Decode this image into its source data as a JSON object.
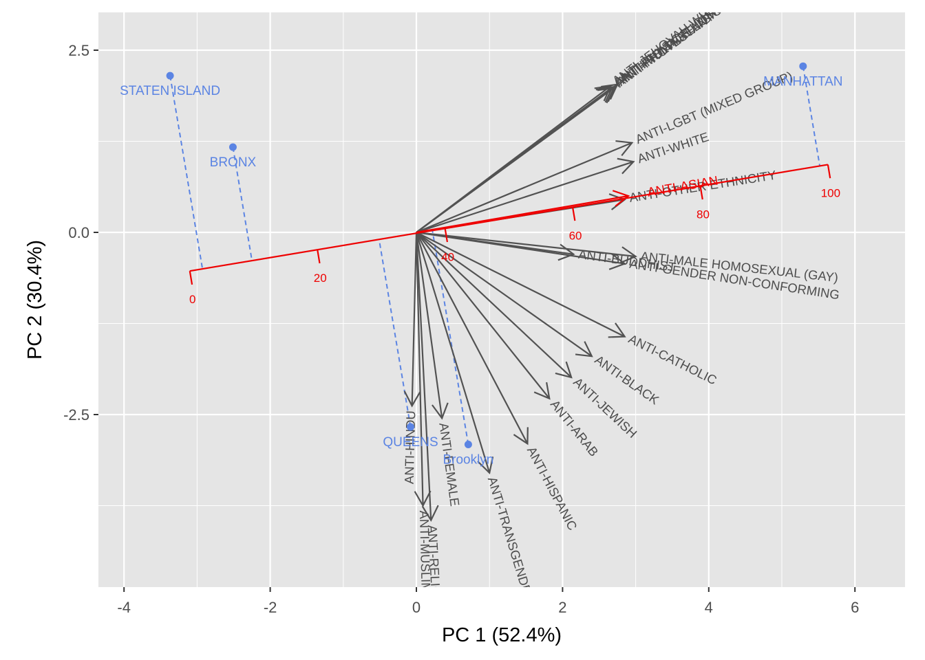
{
  "chart_data": {
    "type": "scatter",
    "subtype": "biplot",
    "xlabel": "PC 1 (52.4%)",
    "ylabel": "PC 2 (30.4%)",
    "xlim": [
      -4.35,
      6.7
    ],
    "ylim": [
      -4.85,
      3.0
    ],
    "x_ticks": [
      -4,
      -2,
      0,
      2,
      4,
      6
    ],
    "x_tick_labels": [
      "-4",
      "-2",
      "0",
      "2",
      "4",
      "6"
    ],
    "y_ticks": [
      2.5,
      0.0,
      -2.5
    ],
    "y_tick_labels": [
      "2.5",
      "0.0",
      "-2.5"
    ],
    "grid": true,
    "colors": {
      "panel": "#e5e5e5",
      "grid": "#ffffff",
      "points": "#5b84e3",
      "arrows": "#525252",
      "calibration": "#ee0000"
    },
    "observations": [
      {
        "label": "STATEN ISLAND",
        "x": -3.37,
        "y": 2.15
      },
      {
        "label": "BRONX",
        "x": -2.51,
        "y": 1.17
      },
      {
        "label": "MANHATTAN",
        "x": 5.29,
        "y": 2.28
      },
      {
        "label": "QUEENS",
        "x": -0.08,
        "y": -2.67
      },
      {
        "label": "Brooklyn",
        "x": 0.71,
        "y": -2.91
      }
    ],
    "variables": [
      {
        "label": "ANTI-LGBT (MIXED GROUP)",
        "x": 2.95,
        "y": 1.23
      },
      {
        "label": "ANTI-WHITE",
        "x": 2.97,
        "y": 0.97
      },
      {
        "label": "ANTI-OTHER ETHNICITY",
        "x": 2.85,
        "y": 0.45
      },
      {
        "label": "ANTI-MALE HOMOSEXUAL (GAY)",
        "x": 3.0,
        "y": -0.33
      },
      {
        "label": "ANTI-BUDDHIST",
        "x": 2.15,
        "y": -0.3
      },
      {
        "label": "ANTI-GENDER NON-CONFORMING",
        "x": 2.85,
        "y": -0.43
      },
      {
        "label": "ANTI-CATHOLIC",
        "x": 2.85,
        "y": -1.43
      },
      {
        "label": "ANTI-BLACK",
        "x": 2.4,
        "y": -1.7
      },
      {
        "label": "ANTI-JEWISH",
        "x": 2.12,
        "y": -1.99
      },
      {
        "label": "ANTI-ARAB",
        "x": 1.82,
        "y": -2.28
      },
      {
        "label": "ANTI-HISPANIC",
        "x": 1.52,
        "y": -2.9
      },
      {
        "label": "ANTI-TRANSGENDER",
        "x": 1.0,
        "y": -3.3
      },
      {
        "label": "ANTI-FEMALE",
        "x": 0.35,
        "y": -2.55
      },
      {
        "label": "ANTI-HINDU",
        "x": -0.06,
        "y": -2.38
      },
      {
        "label": "ANTI-RELIGIOUS",
        "x": 0.2,
        "y": -3.95
      },
      {
        "label": "ANTI-MUSLIM",
        "x": 0.09,
        "y": -3.75
      },
      {
        "label": "ANTI-FEMALE HOMOSEXUAL",
        "x": 2.75,
        "y": 2.03
      },
      {
        "label": "ANTI-MULTI-RELIGIOUS",
        "x": 2.72,
        "y": 2.0
      },
      {
        "label": "ANTI-PHYSICAL DISABILITY",
        "x": 2.68,
        "y": 1.99
      },
      {
        "label": "ANTI-PROTESTANT",
        "x": 2.7,
        "y": 1.98
      },
      {
        "label": "ANTI-JEHOVAH WITNESS",
        "x": 2.66,
        "y": 2.01
      }
    ],
    "calibrated_axis": {
      "variable": "ANTI-ASIAN",
      "start": {
        "x": -3.1,
        "y": -0.53
      },
      "end": {
        "x": 5.63,
        "y": 0.93
      },
      "arrow_tip": {
        "x": 2.9,
        "y": 0.5
      },
      "ticks": [
        0,
        20,
        40,
        60,
        80,
        100
      ],
      "tick_labels": [
        "0",
        "20",
        "40",
        "60",
        "80",
        "100"
      ]
    }
  }
}
